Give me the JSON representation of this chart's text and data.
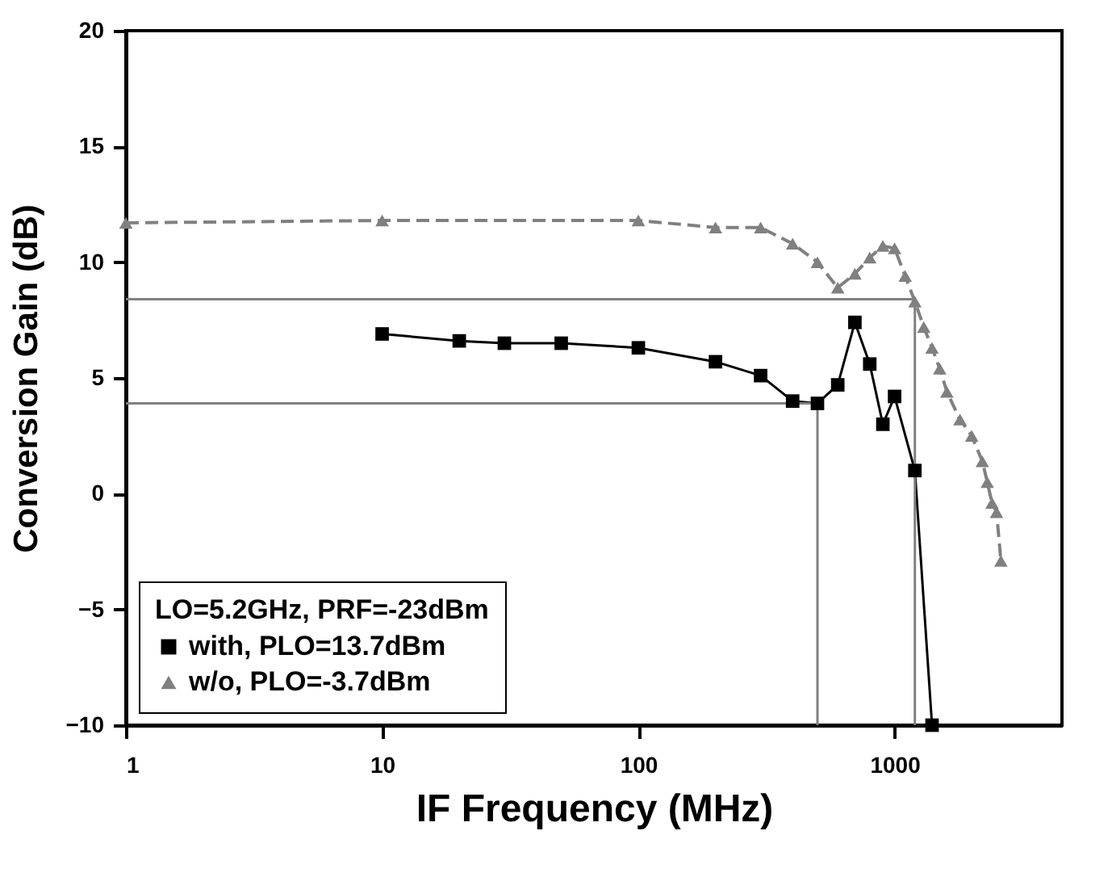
{
  "chart_data": {
    "type": "line",
    "xlabel": "IF Frequency (MHz)",
    "ylabel": "Conversion Gain (dB)",
    "legend_title": "LO=5.2GHz, PRF=-23dBm",
    "log": "x",
    "xlim": [
      1,
      4500
    ],
    "xticks": [
      1,
      10,
      100,
      1000
    ],
    "ylim": [
      -10,
      20
    ],
    "yticks": [
      -10,
      -5,
      0,
      5,
      10,
      15,
      20
    ],
    "grid": false,
    "legend": "bottom left",
    "series": [
      {
        "name": "with, PLO=13.7dBm",
        "color": "#000000",
        "marker": "square",
        "line_style": "solid",
        "x": [
          10,
          20,
          30,
          50,
          100,
          200,
          300,
          400,
          500,
          600,
          700,
          800,
          900,
          1000,
          1200,
          1400
        ],
        "values": [
          6.9,
          6.6,
          6.5,
          6.5,
          6.3,
          5.7,
          5.1,
          4.0,
          3.9,
          4.7,
          7.4,
          5.6,
          3.0,
          4.2,
          1.0,
          -10
        ]
      },
      {
        "name": "w/o, PLO=-3.7dBm",
        "color": "#808080",
        "marker": "triangle",
        "line_style": "dashed",
        "x": [
          1,
          10,
          100,
          200,
          300,
          400,
          500,
          600,
          700,
          800,
          900,
          1000,
          1100,
          1200,
          1300,
          1400,
          1500,
          1600,
          1800,
          2000,
          2200,
          2300,
          2400,
          2500,
          2600
        ],
        "values": [
          11.7,
          11.8,
          11.8,
          11.5,
          11.5,
          10.8,
          10.0,
          8.9,
          9.5,
          10.2,
          10.7,
          10.6,
          9.4,
          8.3,
          7.2,
          6.3,
          5.4,
          4.4,
          3.2,
          2.5,
          1.4,
          0.5,
          -0.4,
          -0.8,
          -2.9
        ]
      }
    ],
    "ref_lines": [
      {
        "axis": "y",
        "value": 8.4,
        "color": "#808080"
      },
      {
        "axis": "x",
        "value": 1200,
        "color": "#808080"
      },
      {
        "axis": "y",
        "value": 3.9,
        "color": "#808080"
      },
      {
        "axis": "x",
        "value": 500,
        "color": "#808080"
      }
    ]
  }
}
